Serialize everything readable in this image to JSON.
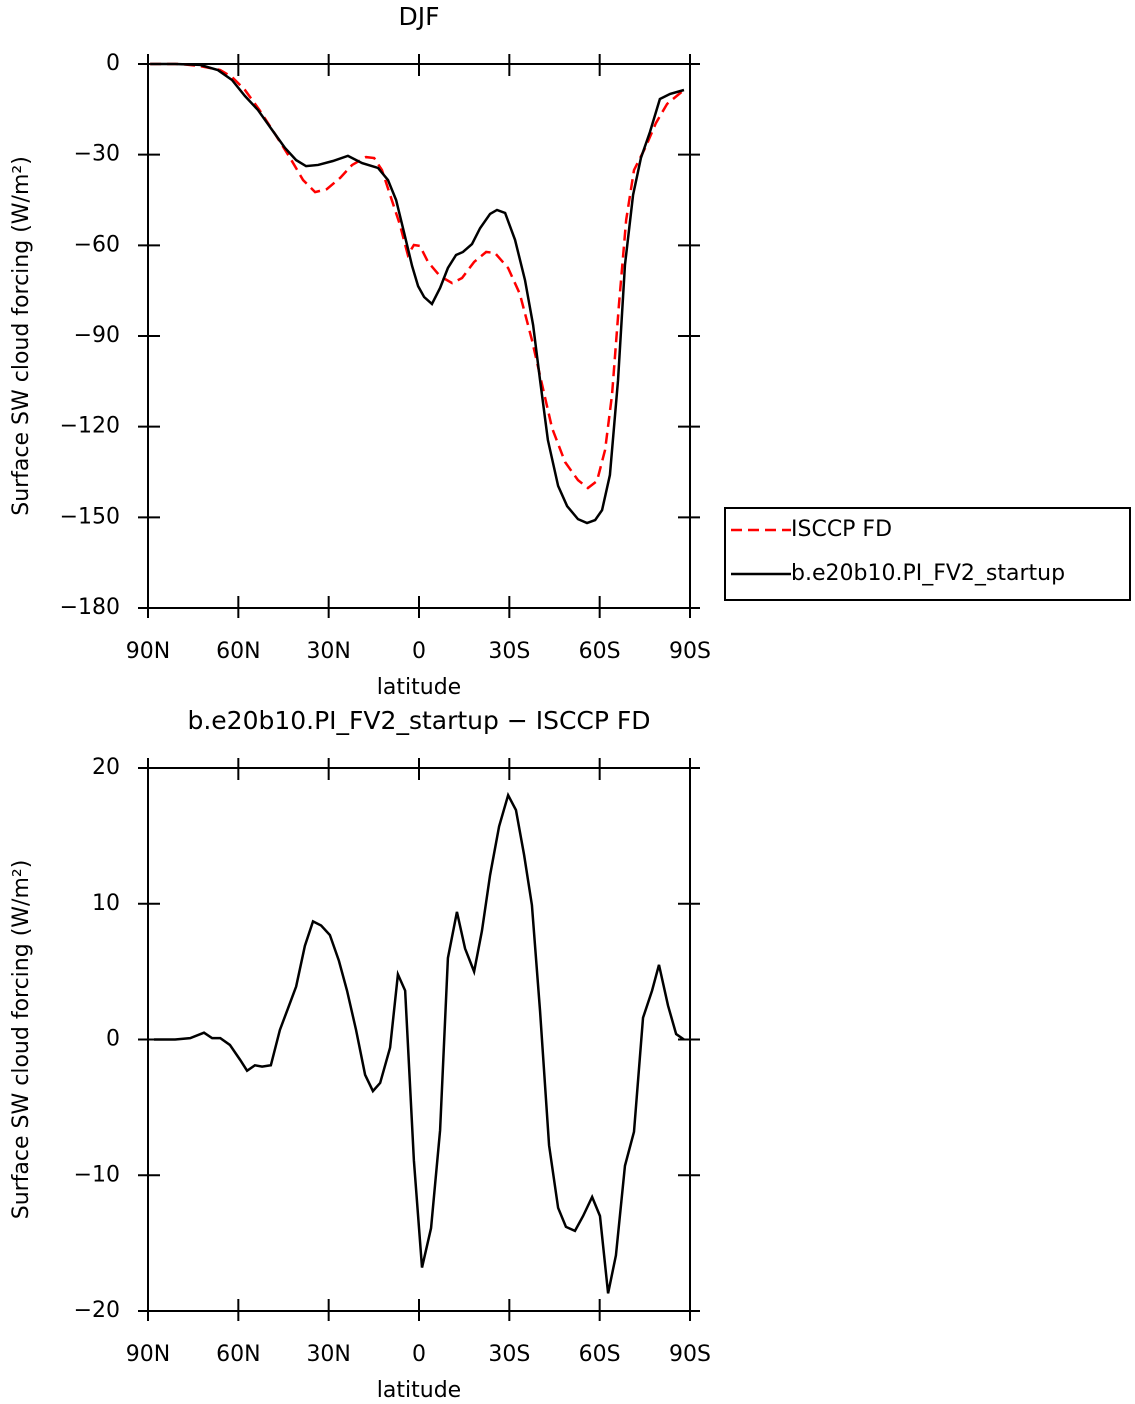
{
  "chart_data": [
    {
      "type": "line",
      "title": "DJF",
      "x_label": "latitude",
      "y_label": "Surface SW cloud forcing (W/m²)",
      "xlim": [
        90,
        -90
      ],
      "ylim": [
        0,
        -180
      ],
      "xticks": [
        {
          "value": 90,
          "label": "90N"
        },
        {
          "value": 60,
          "label": "60N"
        },
        {
          "value": 30,
          "label": "30N"
        },
        0,
        {
          "value": -30,
          "label": "30S"
        },
        {
          "value": -60,
          "label": "60S"
        },
        {
          "value": -90,
          "label": "90S"
        }
      ],
      "yticks": [
        0,
        {
          "value": -30,
          "label": "−30"
        },
        {
          "value": -60,
          "label": "−60"
        },
        {
          "value": -90,
          "label": "−90"
        },
        {
          "value": -120,
          "label": "−120"
        },
        {
          "value": -150,
          "label": "−150"
        },
        {
          "value": -180,
          "label": "−180"
        }
      ],
      "legend": "right",
      "series": [
        {
          "name": "ISCCP FD",
          "color": "#ff0000",
          "line_style": "dashed",
          "x": [
            89.3,
            79,
            72.7,
            66,
            62.1,
            57.8,
            53,
            47.8,
            42.8,
            38.5,
            34.5,
            30.6,
            26.2,
            22.2,
            17.6,
            14.9,
            12.3,
            9.6,
            6.3,
            3.7,
            1.7,
            -0.3,
            -3,
            -7,
            -11,
            -14.3,
            -18.3,
            -22.3,
            -25.2,
            -29.6,
            -33.5,
            -37.5,
            -40.9,
            -44.2,
            -48.5,
            -52.8,
            -56.1,
            -59.1,
            -61.8,
            -64.1,
            -66.4,
            -68.8,
            -71.4,
            -75.1,
            -78.7,
            -82.4,
            -88
          ],
          "values": [
            0,
            0,
            -0.7,
            -2,
            -4.3,
            -8.6,
            -15.2,
            -23.2,
            -31.1,
            -38.4,
            -42.4,
            -41.4,
            -37.7,
            -33.4,
            -30.8,
            -31.1,
            -35.1,
            -43.3,
            -53.3,
            -63.2,
            -59.9,
            -60.2,
            -65.5,
            -70.2,
            -72.5,
            -70.8,
            -65.5,
            -62.2,
            -62.5,
            -67.5,
            -76.1,
            -91.3,
            -106.2,
            -120.5,
            -131.7,
            -137.7,
            -140.3,
            -138,
            -127.7,
            -109.5,
            -79.7,
            -51.6,
            -35.1,
            -27.8,
            -19.5,
            -13.2,
            -8.6
          ]
        },
        {
          "name": "b.e20b10.PI_FV2_startup",
          "color": "#000000",
          "line_style": "solid",
          "x": [
            89.3,
            81,
            72.7,
            66.8,
            62.1,
            57.8,
            53.5,
            48.8,
            44.5,
            40.8,
            37.5,
            33.5,
            28.6,
            23.6,
            18.9,
            13.6,
            10.3,
            7.6,
            5,
            2.3,
            0.3,
            -1.7,
            -4.3,
            -7,
            -9.6,
            -12.3,
            -14.6,
            -17.6,
            -20.3,
            -23.6,
            -25.9,
            -28.6,
            -31.9,
            -35.2,
            -37.9,
            -40.2,
            -42.8,
            -46.2,
            -49.2,
            -52.8,
            -55.8,
            -58.5,
            -60.8,
            -63.4,
            -66.1,
            -68.4,
            -71.1,
            -73.7,
            -76.7,
            -80,
            -83.4,
            -88
          ],
          "values": [
            0,
            0,
            -0.3,
            -2,
            -5.3,
            -10.6,
            -15.2,
            -21.8,
            -27.8,
            -31.8,
            -33.8,
            -33.4,
            -32.1,
            -30.4,
            -32.8,
            -34.4,
            -38.4,
            -45,
            -55.6,
            -66.8,
            -73.5,
            -77.1,
            -79.4,
            -74.1,
            -67.5,
            -63.2,
            -62.2,
            -59.6,
            -54.3,
            -49.6,
            -48.3,
            -49.3,
            -58.2,
            -71.5,
            -86.4,
            -104.6,
            -124.4,
            -139.6,
            -146.3,
            -150.6,
            -151.9,
            -150.9,
            -147.6,
            -136,
            -104.6,
            -66.5,
            -43.3,
            -31.1,
            -22.5,
            -11.6,
            -9.9,
            -8.6
          ]
        }
      ]
    },
    {
      "type": "line",
      "title": "b.e20b10.PI_FV2_startup − ISCCP FD",
      "x_label": "latitude",
      "y_label": "Surface SW cloud forcing (W/m²)",
      "xlim": [
        90,
        -90
      ],
      "ylim": [
        20,
        -20
      ],
      "xticks": [
        {
          "value": 90,
          "label": "90N"
        },
        {
          "value": 60,
          "label": "60N"
        },
        {
          "value": 30,
          "label": "30N"
        },
        0,
        {
          "value": -30,
          "label": "30S"
        },
        {
          "value": -60,
          "label": "60S"
        },
        {
          "value": -90,
          "label": "90S"
        }
      ],
      "yticks": [
        20,
        10,
        0,
        {
          "value": -10,
          "label": "−10"
        },
        {
          "value": -20,
          "label": "−20"
        }
      ],
      "series": [
        {
          "color": "#000000",
          "line_style": "solid",
          "x": [
            88,
            81,
            76,
            71.4,
            68.7,
            66,
            62.8,
            59.4,
            57.1,
            54.5,
            52.1,
            49.2,
            46.2,
            43.5,
            40.8,
            37.9,
            35.2,
            32.5,
            29.6,
            26.6,
            23.9,
            20.9,
            17.9,
            15.3,
            12.9,
            9.6,
            7,
            4.6,
            1.7,
            -1,
            -4,
            -7,
            -9.6,
            -12.6,
            -15.3,
            -18.3,
            -20.9,
            -23.6,
            -26.6,
            -29.6,
            -32.2,
            -34.9,
            -37.5,
            -40.2,
            -43.2,
            -46.2,
            -48.8,
            -51.8,
            -54.5,
            -57.5,
            -60.1,
            -62.8,
            -65.4,
            -68.4,
            -71.4,
            -74.4,
            -77.4,
            -79.7,
            -82.7,
            -85.4,
            -88
          ],
          "values": [
            0,
            0,
            0.1,
            0.5,
            0.1,
            0.1,
            -0.4,
            -1.5,
            -2.3,
            -1.9,
            -2,
            -1.9,
            0.7,
            2.3,
            3.9,
            6.9,
            8.7,
            8.4,
            7.7,
            5.8,
            3.6,
            0.7,
            -2.6,
            -3.8,
            -3.2,
            -0.6,
            4.8,
            3.6,
            -8.9,
            -16.8,
            -13.9,
            -6.7,
            6,
            9.4,
            6.7,
            5,
            8,
            12.1,
            15.7,
            18,
            16.9,
            13.6,
            9.9,
            2.1,
            -7.8,
            -12.4,
            -13.8,
            -14.1,
            -13,
            -11.6,
            -13,
            -18.7,
            -15.9,
            -9.3,
            -6.8,
            1.6,
            3.6,
            5.5,
            2.5,
            0.4,
            0
          ]
        }
      ]
    }
  ]
}
